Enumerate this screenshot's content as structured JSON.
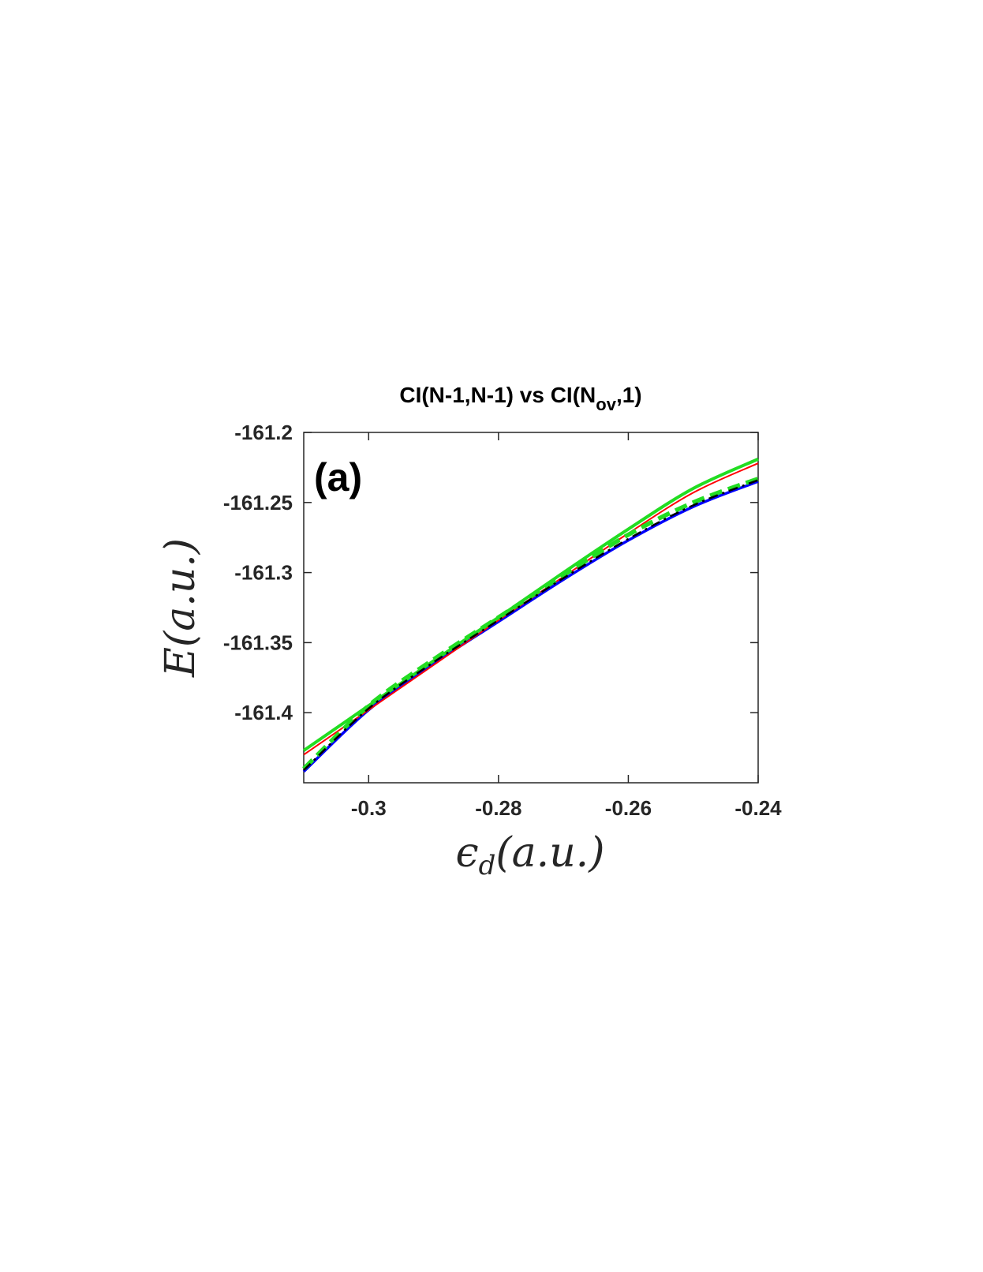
{
  "chart_data": {
    "type": "line",
    "title": {
      "prefix": "CI(N-1,N-1) vs CI(N",
      "subscript": "ov",
      "suffix": ",1)"
    },
    "panel_label": "(a)",
    "xlabel": "ϵd(a.u.)",
    "ylabel": "E(a.u.)",
    "xlim": [
      -0.31,
      -0.24
    ],
    "ylim": [
      -161.45,
      -161.2
    ],
    "xticks": [
      -0.3,
      -0.28,
      -0.26,
      -0.24
    ],
    "xtick_labels": [
      "-0.3",
      "-0.28",
      "-0.26",
      "-0.24"
    ],
    "yticks": [
      -161.2,
      -161.25,
      -161.3,
      -161.35,
      -161.4
    ],
    "ytick_labels": [
      "-161.2",
      "-161.25",
      "-161.3",
      "-161.35",
      "-161.4"
    ],
    "grid": false,
    "series": [
      {
        "color": "#0000ff",
        "style": "solid",
        "x": [
          -0.31,
          -0.3,
          -0.29,
          -0.28,
          -0.27,
          -0.26,
          -0.25,
          -0.24
        ],
        "y": [
          -161.442,
          -161.398,
          -161.365,
          -161.335,
          -161.305,
          -161.277,
          -161.253,
          -161.235
        ]
      },
      {
        "color": "#ff0000",
        "style": "solid",
        "x": [
          -0.31,
          -0.3,
          -0.29,
          -0.28,
          -0.27,
          -0.26,
          -0.25,
          -0.24
        ],
        "y": [
          -161.43,
          -161.398,
          -161.366,
          -161.334,
          -161.303,
          -161.272,
          -161.243,
          -161.222
        ]
      },
      {
        "color": "#22dd22",
        "style": "solid",
        "x": [
          -0.31,
          -0.3,
          -0.29,
          -0.28,
          -0.27,
          -0.26,
          -0.25,
          -0.24
        ],
        "y": [
          -161.427,
          -161.395,
          -161.363,
          -161.332,
          -161.3,
          -161.269,
          -161.24,
          -161.219
        ]
      },
      {
        "color": "#22dd22",
        "style": "dashed",
        "x": [
          -0.31,
          -0.3,
          -0.29,
          -0.28,
          -0.27,
          -0.26,
          -0.25,
          -0.24
        ],
        "y": [
          -161.44,
          -161.395,
          -161.362,
          -161.332,
          -161.302,
          -161.273,
          -161.25,
          -161.233
        ]
      },
      {
        "color": "#000000",
        "style": "dashdot",
        "x": [
          -0.31,
          -0.3,
          -0.29,
          -0.28,
          -0.27,
          -0.26,
          -0.25,
          -0.24
        ],
        "y": [
          -161.441,
          -161.397,
          -161.364,
          -161.334,
          -161.304,
          -161.276,
          -161.252,
          -161.234
        ]
      }
    ]
  }
}
